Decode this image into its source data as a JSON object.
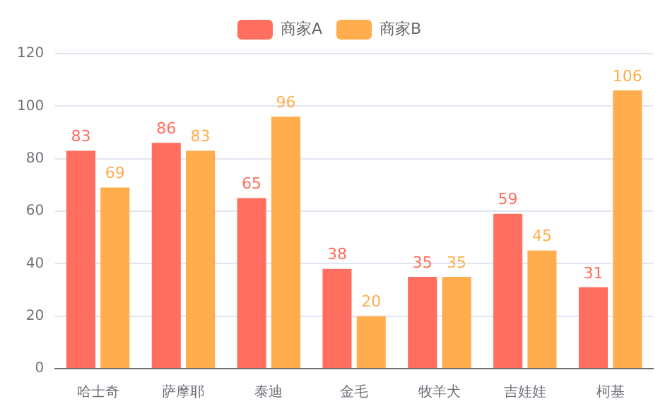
{
  "chart_data": {
    "type": "bar",
    "categories": [
      "哈士奇",
      "萨摩耶",
      "泰迪",
      "金毛",
      "牧羊犬",
      "吉娃娃",
      "柯基"
    ],
    "series": [
      {
        "name": "商家A",
        "color": "#ff6e5f",
        "values": [
          83,
          86,
          65,
          38,
          35,
          59,
          31
        ]
      },
      {
        "name": "商家B",
        "color": "#ffad4d",
        "values": [
          69,
          83,
          96,
          20,
          35,
          45,
          106
        ]
      }
    ],
    "ylim": [
      0,
      120
    ],
    "yticks": [
      0,
      20,
      40,
      60,
      80,
      100,
      120
    ],
    "grid": "y",
    "legend": "top",
    "data_labels": true
  }
}
